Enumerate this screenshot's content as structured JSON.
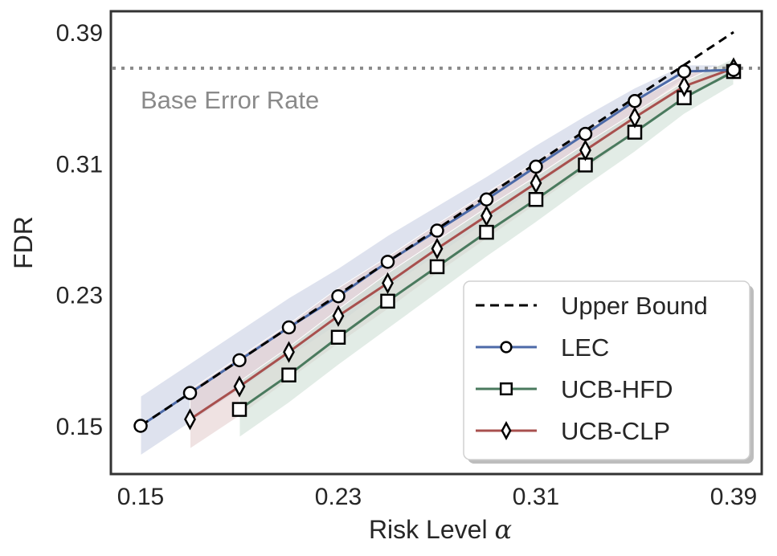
{
  "chart_data": {
    "type": "line",
    "title": "",
    "xlabel": "Risk Level α",
    "xlabel_text": "Risk Level ",
    "xlabel_symbol": "α",
    "ylabel": "FDR",
    "xlim": [
      0.145,
      0.393
    ],
    "ylim": [
      0.121,
      0.403
    ],
    "xticks": [
      0.15,
      0.23,
      0.31,
      0.39
    ],
    "xtick_labels": [
      "0.15",
      "0.23",
      "0.31",
      "0.39"
    ],
    "yticks": [
      0.15,
      0.23,
      0.31,
      0.39
    ],
    "ytick_labels": [
      "0.15",
      "0.23",
      "0.31",
      "0.39"
    ],
    "grid": false,
    "legend_position": "lower right",
    "annotations": [
      {
        "text": "Base Error Rate",
        "type": "horizontal_dotted_line",
        "y": 0.368,
        "color": "#8a8a8a"
      }
    ],
    "reference_line": {
      "name": "Upper Bound",
      "style": "dashed",
      "color": "#000000",
      "x": [
        0.15,
        0.39
      ],
      "y": [
        0.15,
        0.39
      ]
    },
    "series": [
      {
        "name": "LEC",
        "marker": "circle",
        "color": "#4c6aa8",
        "band_color": "#c8cfe3",
        "x": [
          0.15,
          0.17,
          0.19,
          0.21,
          0.23,
          0.25,
          0.27,
          0.29,
          0.31,
          0.33,
          0.35,
          0.37,
          0.39
        ],
        "values": [
          0.15,
          0.17,
          0.19,
          0.21,
          0.229,
          0.25,
          0.269,
          0.288,
          0.308,
          0.328,
          0.348,
          0.366,
          0.367
        ],
        "band_halfwidth": [
          0.018,
          0.018,
          0.018,
          0.018,
          0.017,
          0.016,
          0.015,
          0.014,
          0.013,
          0.011,
          0.008,
          0.004,
          0.003
        ]
      },
      {
        "name": "UCB-HFD",
        "marker": "square",
        "color": "#4a7a5e",
        "band_color": "#cfdfd5",
        "x": [
          0.19,
          0.21,
          0.23,
          0.25,
          0.27,
          0.29,
          0.31,
          0.33,
          0.35,
          0.37,
          0.39
        ],
        "values": [
          0.16,
          0.181,
          0.204,
          0.226,
          0.247,
          0.268,
          0.288,
          0.309,
          0.329,
          0.35,
          0.366
        ],
        "band_halfwidth": [
          0.017,
          0.017,
          0.017,
          0.017,
          0.016,
          0.015,
          0.014,
          0.013,
          0.012,
          0.01,
          0.008
        ]
      },
      {
        "name": "UCB-CLP",
        "marker": "diamond",
        "color": "#a8504e",
        "band_color": "#e5cfcf",
        "x": [
          0.17,
          0.19,
          0.21,
          0.23,
          0.25,
          0.27,
          0.29,
          0.31,
          0.33,
          0.35,
          0.37,
          0.39
        ],
        "values": [
          0.154,
          0.174,
          0.195,
          0.217,
          0.237,
          0.258,
          0.278,
          0.298,
          0.318,
          0.338,
          0.357,
          0.368
        ],
        "band_halfwidth": [
          0.018,
          0.018,
          0.017,
          0.017,
          0.016,
          0.015,
          0.014,
          0.013,
          0.012,
          0.01,
          0.007,
          0.004
        ]
      }
    ],
    "legend": [
      {
        "label": "Upper Bound",
        "style": "dashed",
        "color": "#000000",
        "marker": "none"
      },
      {
        "label": "LEC",
        "style": "solid",
        "color": "#4c6aa8",
        "marker": "circle"
      },
      {
        "label": "UCB-HFD",
        "style": "solid",
        "color": "#4a7a5e",
        "marker": "square"
      },
      {
        "label": "UCB-CLP",
        "style": "solid",
        "color": "#a8504e",
        "marker": "diamond"
      }
    ]
  }
}
